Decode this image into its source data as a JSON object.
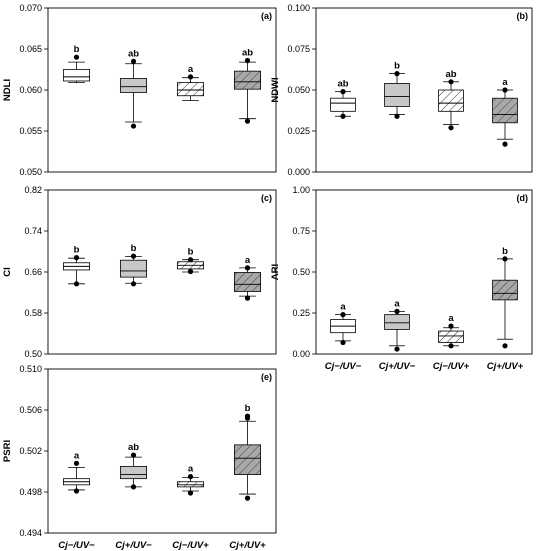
{
  "chart_data": [
    {
      "type": "box",
      "panel": "(a)",
      "ylabel": "NDLI",
      "ylim": [
        0.05,
        0.07
      ],
      "yticks": [
        "0.050",
        "0.055",
        "0.060",
        "0.065",
        "0.070"
      ],
      "yticks_values": [
        0.05,
        0.055,
        0.06,
        0.065,
        0.07
      ],
      "categories": [
        "Cj−/UV−",
        "Cj+/UV−",
        "Cj−/UV+",
        "Cj+/UV+"
      ],
      "show_category_labels": false,
      "boxes": [
        {
          "fill": "white",
          "min": 0.0609,
          "q1": 0.0611,
          "median": 0.0616,
          "q3": 0.0625,
          "max": 0.0634,
          "outliers": [
            0.064
          ],
          "letter": "b"
        },
        {
          "fill": "gray",
          "min": 0.0561,
          "q1": 0.0597,
          "median": 0.0604,
          "q3": 0.0614,
          "max": 0.0632,
          "outliers": [
            0.0556,
            0.0635
          ],
          "letter": "ab"
        },
        {
          "fill": "light-hatch",
          "min": 0.0587,
          "q1": 0.0593,
          "median": 0.06,
          "q3": 0.0609,
          "max": 0.0615,
          "outliers": [
            0.0616
          ],
          "letter": "a"
        },
        {
          "fill": "dark-hatch",
          "min": 0.0565,
          "q1": 0.0601,
          "median": 0.061,
          "q3": 0.0623,
          "max": 0.0634,
          "outliers": [
            0.0562,
            0.0636
          ],
          "letter": "ab"
        }
      ]
    },
    {
      "type": "box",
      "panel": "(b)",
      "ylabel": "NDWI",
      "ylim": [
        0.0,
        0.1
      ],
      "yticks": [
        "0.000",
        "0.025",
        "0.050",
        "0.075",
        "0.100"
      ],
      "yticks_values": [
        0.0,
        0.025,
        0.05,
        0.075,
        0.1
      ],
      "categories": [
        "Cj−/UV−",
        "Cj+/UV−",
        "Cj−/UV+",
        "Cj+/UV+"
      ],
      "show_category_labels": false,
      "boxes": [
        {
          "fill": "white",
          "min": 0.034,
          "q1": 0.037,
          "median": 0.042,
          "q3": 0.045,
          "max": 0.049,
          "outliers": [
            0.034,
            0.049
          ],
          "letter": "ab"
        },
        {
          "fill": "gray",
          "min": 0.035,
          "q1": 0.04,
          "median": 0.046,
          "q3": 0.054,
          "max": 0.06,
          "outliers": [
            0.034,
            0.06
          ],
          "letter": "b"
        },
        {
          "fill": "light-hatch",
          "min": 0.029,
          "q1": 0.037,
          "median": 0.042,
          "q3": 0.05,
          "max": 0.055,
          "outliers": [
            0.027,
            0.055
          ],
          "letter": "ab"
        },
        {
          "fill": "dark-hatch",
          "min": 0.02,
          "q1": 0.03,
          "median": 0.035,
          "q3": 0.045,
          "max": 0.05,
          "outliers": [
            0.017,
            0.05
          ],
          "letter": "a"
        }
      ]
    },
    {
      "type": "box",
      "panel": "(c)",
      "ylabel": "CI",
      "ylim": [
        0.5,
        0.82
      ],
      "yticks": [
        "0.50",
        "0.58",
        "0.66",
        "0.74",
        "0.82"
      ],
      "yticks_values": [
        0.5,
        0.58,
        0.66,
        0.74,
        0.82
      ],
      "categories": [
        "Cj−/UV−",
        "Cj+/UV−",
        "Cj−/UV+",
        "Cj+/UV+"
      ],
      "show_category_labels": false,
      "boxes": [
        {
          "fill": "white",
          "min": 0.637,
          "q1": 0.664,
          "median": 0.671,
          "q3": 0.678,
          "max": 0.687,
          "outliers": [
            0.637,
            0.688
          ],
          "letter": "b"
        },
        {
          "fill": "gray",
          "min": 0.638,
          "q1": 0.65,
          "median": 0.662,
          "q3": 0.683,
          "max": 0.69,
          "outliers": [
            0.637,
            0.691
          ],
          "letter": "b"
        },
        {
          "fill": "light-hatch",
          "min": 0.66,
          "q1": 0.666,
          "median": 0.673,
          "q3": 0.68,
          "max": 0.684,
          "outliers": [
            0.661,
            0.684
          ],
          "letter": "b"
        },
        {
          "fill": "dark-hatch",
          "min": 0.613,
          "q1": 0.622,
          "median": 0.636,
          "q3": 0.659,
          "max": 0.668,
          "outliers": [
            0.609,
            0.668
          ],
          "letter": "a"
        }
      ]
    },
    {
      "type": "box",
      "panel": "(d)",
      "ylabel": "ARI",
      "ylim": [
        0.0,
        1.0
      ],
      "yticks": [
        "0.00",
        "0.25",
        "0.50",
        "0.75",
        "1.00"
      ],
      "yticks_values": [
        0.0,
        0.25,
        0.5,
        0.75,
        1.0
      ],
      "categories": [
        "Cj−/UV−",
        "Cj+/UV−",
        "Cj−/UV+",
        "Cj+/UV+"
      ],
      "show_category_labels": true,
      "boxes": [
        {
          "fill": "white",
          "min": 0.08,
          "q1": 0.13,
          "median": 0.17,
          "q3": 0.21,
          "max": 0.24,
          "outliers": [
            0.07,
            0.24
          ],
          "letter": "a"
        },
        {
          "fill": "gray",
          "min": 0.05,
          "q1": 0.15,
          "median": 0.19,
          "q3": 0.24,
          "max": 0.26,
          "outliers": [
            0.03,
            0.26
          ],
          "letter": "a"
        },
        {
          "fill": "light-hatch",
          "min": 0.05,
          "q1": 0.07,
          "median": 0.11,
          "q3": 0.14,
          "max": 0.16,
          "outliers": [
            0.05,
            0.17
          ],
          "letter": "a"
        },
        {
          "fill": "dark-hatch",
          "min": 0.09,
          "q1": 0.33,
          "median": 0.37,
          "q3": 0.45,
          "max": 0.58,
          "outliers": [
            0.05,
            0.58
          ],
          "letter": "b"
        }
      ]
    },
    {
      "type": "box",
      "panel": "(e)",
      "ylabel": "PSRI",
      "ylim": [
        0.494,
        0.51
      ],
      "yticks": [
        "0.494",
        "0.498",
        "0.502",
        "0.506",
        "0.510"
      ],
      "yticks_values": [
        0.494,
        0.498,
        0.502,
        0.506,
        0.51
      ],
      "categories": [
        "Cj−/UV−",
        "Cj+/UV−",
        "Cj−/UV+",
        "Cj+/UV+"
      ],
      "show_category_labels": true,
      "boxes": [
        {
          "fill": "white",
          "min": 0.4982,
          "q1": 0.4987,
          "median": 0.499,
          "q3": 0.4993,
          "max": 0.5004,
          "outliers": [
            0.4981,
            0.5008
          ],
          "letter": "a"
        },
        {
          "fill": "gray",
          "min": 0.4985,
          "q1": 0.4993,
          "median": 0.4997,
          "q3": 0.5005,
          "max": 0.5014,
          "outliers": [
            0.4985,
            0.5016
          ],
          "letter": "ab"
        },
        {
          "fill": "light-hatch",
          "min": 0.4981,
          "q1": 0.4985,
          "median": 0.4987,
          "q3": 0.499,
          "max": 0.4994,
          "outliers": [
            0.4979,
            0.4995
          ],
          "letter": "a"
        },
        {
          "fill": "dark-hatch",
          "min": 0.4978,
          "q1": 0.4997,
          "median": 0.5013,
          "q3": 0.5026,
          "max": 0.5049,
          "outliers": [
            0.4974,
            0.5052,
            0.5054
          ],
          "letter": "b"
        }
      ]
    }
  ]
}
